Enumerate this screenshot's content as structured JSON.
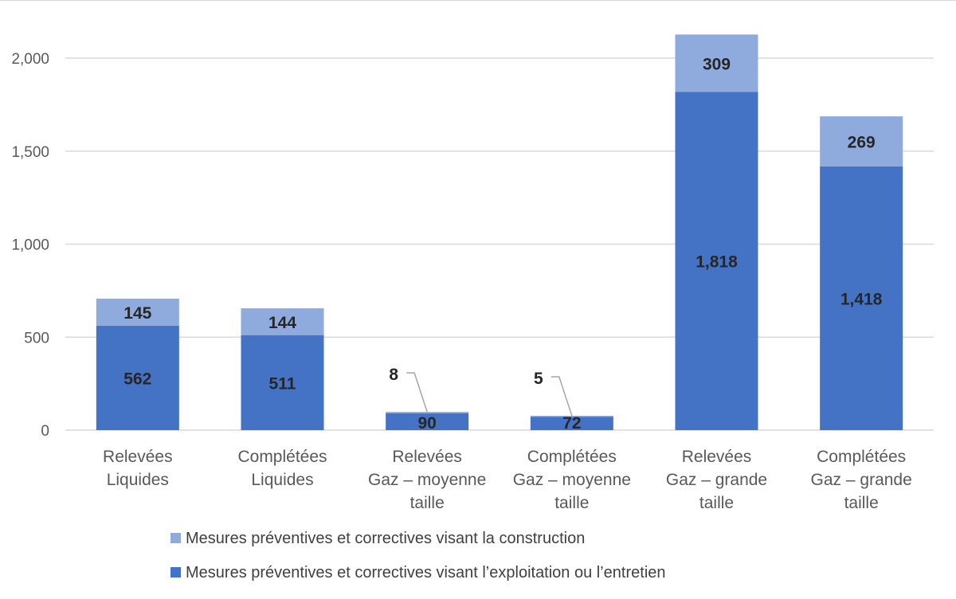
{
  "chart_data": {
    "type": "bar",
    "stacked": true,
    "categories": [
      [
        "Relevées",
        "Liquides"
      ],
      [
        "Complétées",
        "Liquides"
      ],
      [
        "Relevées",
        "Gaz – moyenne",
        "taille"
      ],
      [
        "Complétées",
        "Gaz – moyenne",
        "taille"
      ],
      [
        "Relevées",
        "Gaz – grande",
        "taille"
      ],
      [
        "Complétées",
        "Gaz – grande",
        "taille"
      ]
    ],
    "series": [
      {
        "name": "Mesures préventives et correctives visant l’exploitation ou l’entretien",
        "color": "#4472C4",
        "values": [
          562,
          511,
          90,
          72,
          1818,
          1418
        ],
        "labels": [
          "562",
          "511",
          "90",
          "72",
          "1,818",
          "1,418"
        ]
      },
      {
        "name": "Mesures préventives et correctives visant la construction",
        "color": "#8FAADC",
        "values": [
          145,
          144,
          8,
          5,
          309,
          269
        ],
        "labels": [
          "145",
          "144",
          "8",
          "5",
          "309",
          "269"
        ]
      }
    ],
    "yticks": [
      "0",
      "500",
      "1,000",
      "1,500",
      "2,000"
    ],
    "ytick_values": [
      0,
      500,
      1000,
      1500,
      2000
    ],
    "ylim": [
      0,
      2250
    ],
    "grid": true,
    "legend_position": "bottom",
    "legend_order": [
      1,
      0
    ],
    "xlabel": "",
    "ylabel": "",
    "title": ""
  }
}
